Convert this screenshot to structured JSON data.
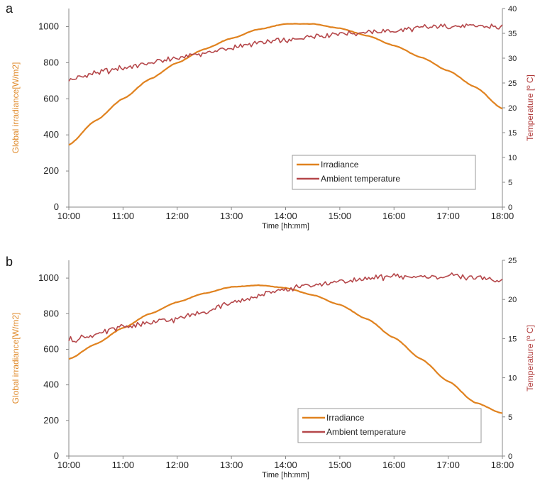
{
  "colors": {
    "irradiance": "#e0821f",
    "temperature": "#b5474a",
    "axis": "#888888"
  },
  "chart_data": [
    {
      "type": "line",
      "panel_label": "a",
      "x_ticks": [
        "10:00",
        "11:00",
        "12:00",
        "13:00",
        "14:00",
        "15:00",
        "16:00",
        "17:00",
        "18:00"
      ],
      "xlabel": "Time [hh:mm]",
      "ylabel_left": "Global irradiance[W/m2]",
      "ylabel_right": "Temperature [º C]",
      "ylim_left": [
        0,
        1100
      ],
      "y_ticks_left": [
        0,
        200,
        400,
        600,
        800,
        1000
      ],
      "ylim_right": [
        0,
        40
      ],
      "y_ticks_right": [
        0,
        5,
        10,
        15,
        20,
        25,
        30,
        35,
        40
      ],
      "legend": {
        "position": "lower-right",
        "entries": [
          "Irradiance",
          "Ambient temperature"
        ]
      },
      "series": [
        {
          "name": "Irradiance",
          "axis": "left",
          "x": [
            "10:00",
            "10:30",
            "11:00",
            "11:30",
            "12:00",
            "12:30",
            "13:00",
            "13:30",
            "14:00",
            "14:30",
            "15:00",
            "15:30",
            "16:00",
            "16:30",
            "17:00",
            "17:30",
            "18:00"
          ],
          "values": [
            345,
            480,
            600,
            710,
            800,
            875,
            935,
            985,
            1015,
            1015,
            990,
            950,
            895,
            830,
            755,
            665,
            545
          ]
        },
        {
          "name": "Ambient temperature",
          "axis": "right",
          "x": [
            "10:00",
            "10:30",
            "11:00",
            "11:30",
            "12:00",
            "12:30",
            "13:00",
            "13:30",
            "14:00",
            "14:30",
            "15:00",
            "15:30",
            "16:00",
            "16:30",
            "17:00",
            "17:30",
            "18:00"
          ],
          "values": [
            25.5,
            27,
            28,
            29,
            30,
            31,
            32,
            33,
            33.5,
            34.5,
            35,
            35.2,
            35.5,
            36.2,
            36.5,
            36.5,
            36.2
          ]
        }
      ]
    },
    {
      "type": "line",
      "panel_label": "b",
      "x_ticks": [
        "10:00",
        "11:00",
        "12:00",
        "13:00",
        "14:00",
        "15:00",
        "16:00",
        "17:00",
        "18:00"
      ],
      "xlabel": "Time [hh:mm]",
      "ylabel_left": "Global irradiance[W/m2]",
      "ylabel_right": "Temperature [º C]",
      "ylim_left": [
        0,
        1100
      ],
      "y_ticks_left": [
        0,
        200,
        400,
        600,
        800,
        1000
      ],
      "ylim_right": [
        0,
        25
      ],
      "y_ticks_right": [
        0,
        5,
        10,
        15,
        20,
        25
      ],
      "legend": {
        "position": "lower-right",
        "entries": [
          "Irradiance",
          "Ambient temperature"
        ]
      },
      "series": [
        {
          "name": "Irradiance",
          "axis": "left",
          "x": [
            "10:00",
            "10:30",
            "11:00",
            "11:30",
            "12:00",
            "12:30",
            "13:00",
            "13:30",
            "14:00",
            "14:30",
            "15:00",
            "15:30",
            "16:00",
            "16:30",
            "17:00",
            "17:30",
            "18:00"
          ],
          "values": [
            545,
            630,
            720,
            800,
            865,
            915,
            950,
            960,
            945,
            905,
            850,
            770,
            665,
            545,
            420,
            300,
            240
          ]
        },
        {
          "name": "Ambient temperature",
          "axis": "right",
          "x": [
            "10:00",
            "10:30",
            "11:00",
            "11:30",
            "12:00",
            "12:30",
            "13:00",
            "13:30",
            "14:00",
            "14:30",
            "15:00",
            "15:30",
            "16:00",
            "16:30",
            "17:00",
            "17:30",
            "18:00"
          ],
          "values": [
            14.8,
            15.5,
            16.5,
            17,
            17.5,
            18.5,
            19.5,
            20.5,
            21.3,
            21.8,
            22.3,
            22.6,
            23,
            22.8,
            23,
            22.8,
            22.3
          ]
        }
      ]
    }
  ]
}
